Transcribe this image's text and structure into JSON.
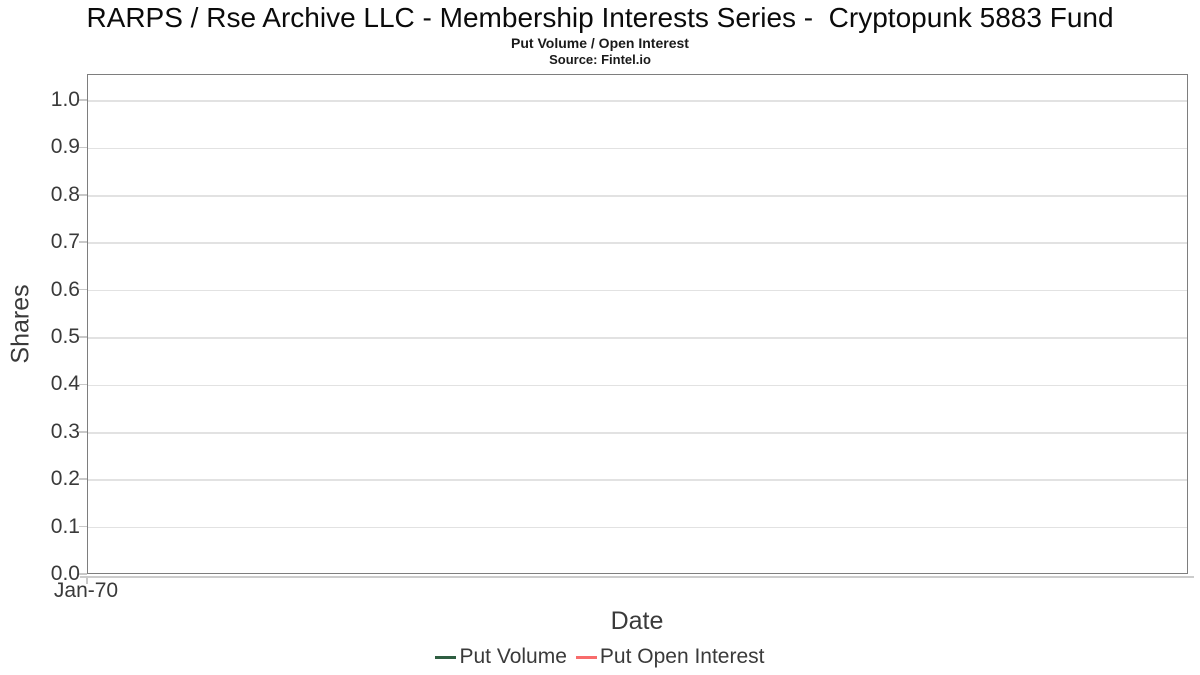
{
  "chart_data": {
    "type": "line",
    "title": "RARPS / Rse Archive LLC - Membership Interests Series -  Cryptopunk 5883 Fund",
    "subtitle": "Put Volume / Open Interest",
    "source": "Source: Fintel.io",
    "xlabel": "Date",
    "ylabel": "Shares",
    "x_ticks": [
      "Jan-70"
    ],
    "y_ticks": [
      "0.0",
      "0.1",
      "0.2",
      "0.3",
      "0.4",
      "0.5",
      "0.6",
      "0.7",
      "0.8",
      "0.9",
      "1.0"
    ],
    "ylim": [
      0.0,
      1.055
    ],
    "grid": true,
    "legend_position": "bottom-center",
    "series": [
      {
        "name": "Put Volume",
        "color": "#2e5e41",
        "x": [],
        "values": []
      },
      {
        "name": "Put Open Interest",
        "color": "#f86c6c",
        "x": [],
        "values": []
      }
    ],
    "plot_styles": {
      "grid_color": "#e2e2e2",
      "border_color": "#7e7e7e",
      "tick_color": "#c9c9c9",
      "text_color": "#3a3a3a",
      "background": "#ffffff"
    }
  }
}
